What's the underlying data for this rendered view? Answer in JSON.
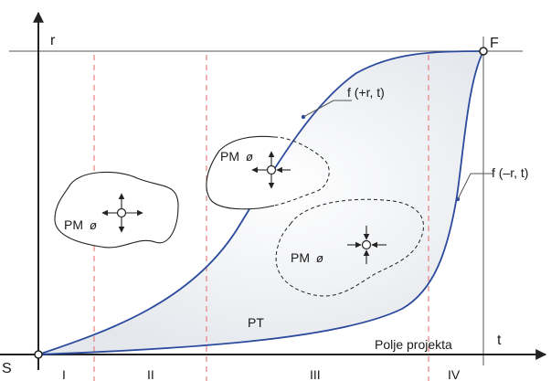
{
  "diagram": {
    "axis_labels": {
      "y": "r",
      "x": "t",
      "origin": "S",
      "finish": "F"
    },
    "phases": [
      "I",
      "II",
      "III",
      "IV"
    ],
    "curves": {
      "upper": "f (+r, t)",
      "lower": "f (–r, t)"
    },
    "field_label": "Polje projekta",
    "region_label": "PT",
    "blobs": [
      {
        "label": "PM",
        "symbol": "ø",
        "arrows": "outward",
        "style": "solid"
      },
      {
        "label": "PM",
        "symbol": "ø",
        "arrows": "outward",
        "style": "solid"
      },
      {
        "label": "PM",
        "symbol": "ø",
        "arrows": "inward",
        "style": "dashed"
      }
    ],
    "colors": {
      "curve": "#2b4a9e",
      "phase_line": "#e58080",
      "axis": "#222222",
      "fill": "#eef0f3"
    }
  }
}
